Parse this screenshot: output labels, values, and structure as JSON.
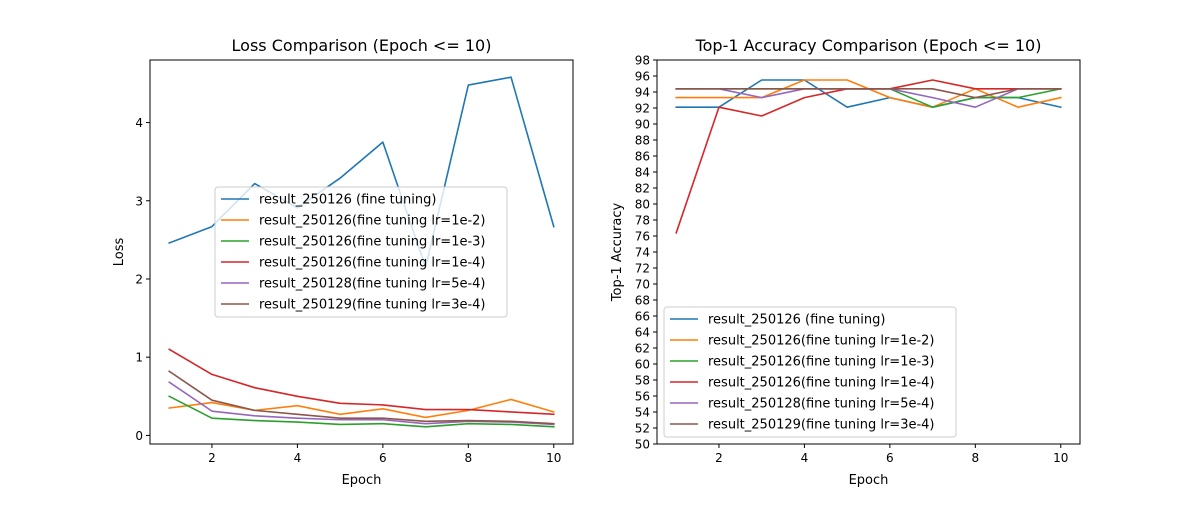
{
  "chart_data": [
    {
      "type": "line",
      "title": "Loss Comparison (Epoch <= 10)",
      "xlabel": "Epoch",
      "ylabel": "Loss",
      "x": [
        1,
        2,
        3,
        4,
        5,
        6,
        7,
        8,
        9,
        10
      ],
      "xlim": [
        0.55,
        10.45
      ],
      "ylim": [
        -0.11,
        4.8
      ],
      "xticks": [
        2,
        4,
        6,
        8,
        10
      ],
      "yticks": [
        0,
        1,
        2,
        3,
        4
      ],
      "legend": "center",
      "grid": false,
      "series": [
        {
          "name": "result_250126 (fine tuning)",
          "color": "#1f77b4",
          "values": [
            2.46,
            2.67,
            3.22,
            2.91,
            3.29,
            3.75,
            2.15,
            4.48,
            4.58,
            2.67
          ]
        },
        {
          "name": "result_250126(fine tuning lr=1e-2)",
          "color": "#ff7f0e",
          "values": [
            0.35,
            0.42,
            0.32,
            0.38,
            0.27,
            0.34,
            0.23,
            0.32,
            0.46,
            0.3
          ]
        },
        {
          "name": "result_250126(fine tuning lr=1e-3)",
          "color": "#2ca02c",
          "values": [
            0.5,
            0.22,
            0.19,
            0.17,
            0.14,
            0.15,
            0.11,
            0.15,
            0.14,
            0.11
          ]
        },
        {
          "name": "result_250126(fine tuning lr=1e-4)",
          "color": "#d62728",
          "values": [
            1.1,
            0.78,
            0.61,
            0.5,
            0.41,
            0.39,
            0.33,
            0.33,
            0.3,
            0.27
          ]
        },
        {
          "name": "result_250128(fine tuning lr=5e-4)",
          "color": "#9467bd",
          "values": [
            0.68,
            0.31,
            0.25,
            0.22,
            0.2,
            0.2,
            0.15,
            0.18,
            0.17,
            0.14
          ]
        },
        {
          "name": "result_250129(fine tuning lr=3e-4)",
          "color": "#8c564b",
          "values": [
            0.82,
            0.45,
            0.32,
            0.27,
            0.22,
            0.22,
            0.18,
            0.19,
            0.18,
            0.15
          ]
        }
      ]
    },
    {
      "type": "line",
      "title": "Top-1 Accuracy Comparison (Epoch <= 10)",
      "xlabel": "Epoch",
      "ylabel": "Top-1 Accuracy",
      "x": [
        1,
        2,
        3,
        4,
        5,
        6,
        7,
        8,
        9,
        10
      ],
      "xlim": [
        0.55,
        10.45
      ],
      "ylim": [
        50,
        98
      ],
      "xticks": [
        2,
        4,
        6,
        8,
        10
      ],
      "yticks": [
        50,
        52,
        54,
        56,
        58,
        60,
        62,
        64,
        66,
        68,
        70,
        72,
        74,
        76,
        78,
        80,
        82,
        84,
        86,
        88,
        90,
        92,
        94,
        96,
        98
      ],
      "legend": "lower left",
      "grid": false,
      "series": [
        {
          "name": "result_250126 (fine tuning)",
          "color": "#1f77b4",
          "values": [
            92.1,
            92.1,
            95.5,
            95.5,
            92.1,
            93.3,
            92.1,
            93.3,
            93.3,
            92.1
          ]
        },
        {
          "name": "result_250126(fine tuning lr=1e-2)",
          "color": "#ff7f0e",
          "values": [
            93.3,
            93.3,
            93.3,
            95.5,
            95.5,
            93.3,
            92.1,
            94.4,
            92.1,
            93.3
          ]
        },
        {
          "name": "result_250126(fine tuning lr=1e-3)",
          "color": "#2ca02c",
          "values": [
            94.4,
            94.4,
            94.4,
            94.4,
            94.4,
            94.4,
            92.1,
            93.3,
            93.3,
            94.4
          ]
        },
        {
          "name": "result_250126(fine tuning lr=1e-4)",
          "color": "#d62728",
          "values": [
            76.4,
            92.1,
            91.0,
            93.3,
            94.4,
            94.4,
            95.5,
            94.4,
            94.4,
            94.4
          ]
        },
        {
          "name": "result_250128(fine tuning lr=5e-4)",
          "color": "#9467bd",
          "values": [
            94.4,
            94.4,
            93.3,
            94.4,
            94.4,
            94.4,
            93.3,
            92.1,
            94.4,
            94.4
          ]
        },
        {
          "name": "result_250129(fine tuning lr=3e-4)",
          "color": "#8c564b",
          "values": [
            94.4,
            94.4,
            94.4,
            94.4,
            94.4,
            94.4,
            94.4,
            93.3,
            94.4,
            94.4
          ]
        }
      ]
    }
  ]
}
